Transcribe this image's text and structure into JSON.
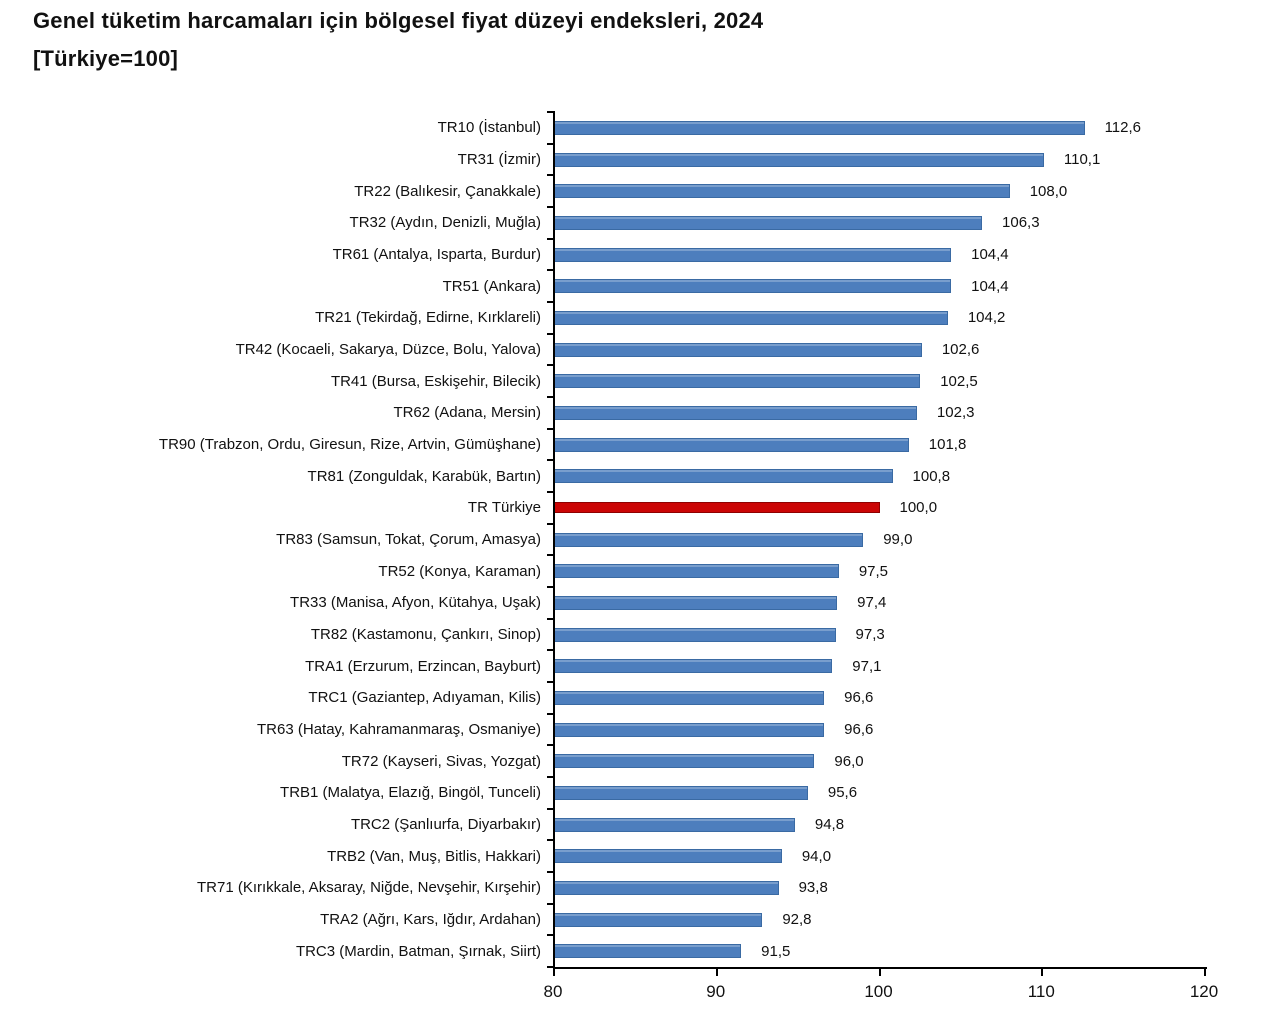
{
  "title": "Genel tüketim harcamaları için bölgesel fiyat düzeyi endeksleri, 2024",
  "subtitle": "[Türkiye=100]",
  "colors": {
    "bar": "#4d7ebd",
    "bar_border": "#3a6aa3",
    "highlight_bar": "#cb0505",
    "highlight_bar_border": "#8e0000",
    "axis": "#000000",
    "text": "#111111",
    "background": "#ffffff"
  },
  "chart_data": {
    "type": "bar",
    "orientation": "horizontal",
    "title": "Genel tüketim harcamaları için bölgesel fiyat düzeyi endeksleri, 2024",
    "subtitle": "[Türkiye=100]",
    "xlabel": "",
    "ylabel": "",
    "xlim": [
      80,
      120
    ],
    "x_ticks": [
      80,
      90,
      100,
      110,
      120
    ],
    "grid": false,
    "legend": false,
    "value_labels_shown": true,
    "decimal_separator": ",",
    "highlight_category": "TR Türkiye",
    "categories": [
      "TR10 (İstanbul)",
      "TR31 (İzmir)",
      "TR22 (Balıkesir, Çanakkale)",
      "TR32 (Aydın, Denizli, Muğla)",
      "TR61 (Antalya, Isparta, Burdur)",
      "TR51 (Ankara)",
      "TR21 (Tekirdağ, Edirne, Kırklareli)",
      "TR42 (Kocaeli, Sakarya, Düzce, Bolu, Yalova)",
      "TR41 (Bursa, Eskişehir, Bilecik)",
      "TR62 (Adana, Mersin)",
      "TR90 (Trabzon, Ordu, Giresun, Rize, Artvin, Gümüşhane)",
      "TR81 (Zonguldak, Karabük, Bartın)",
      "TR Türkiye",
      "TR83 (Samsun, Tokat, Çorum, Amasya)",
      "TR52 (Konya, Karaman)",
      "TR33 (Manisa, Afyon, Kütahya, Uşak)",
      "TR82 (Kastamonu, Çankırı, Sinop)",
      "TRA1 (Erzurum, Erzincan, Bayburt)",
      "TRC1 (Gaziantep, Adıyaman, Kilis)",
      "TR63 (Hatay, Kahramanmaraş, Osmaniye)",
      "TR72 (Kayseri, Sivas, Yozgat)",
      "TRB1 (Malatya, Elazığ, Bingöl, Tunceli)",
      "TRC2 (Şanlıurfa, Diyarbakır)",
      "TRB2 (Van, Muş, Bitlis, Hakkari)",
      "TR71 (Kırıkkale, Aksaray, Niğde, Nevşehir, Kırşehir)",
      "TRA2 (Ağrı, Kars, Iğdır, Ardahan)",
      "TRC3 (Mardin, Batman, Şırnak, Siirt)"
    ],
    "values": [
      112.6,
      110.1,
      108.0,
      106.3,
      104.4,
      104.4,
      104.2,
      102.6,
      102.5,
      102.3,
      101.8,
      100.8,
      100.0,
      99.0,
      97.5,
      97.4,
      97.3,
      97.1,
      96.6,
      96.6,
      96.0,
      95.6,
      94.8,
      94.0,
      93.8,
      92.8,
      91.5
    ]
  }
}
